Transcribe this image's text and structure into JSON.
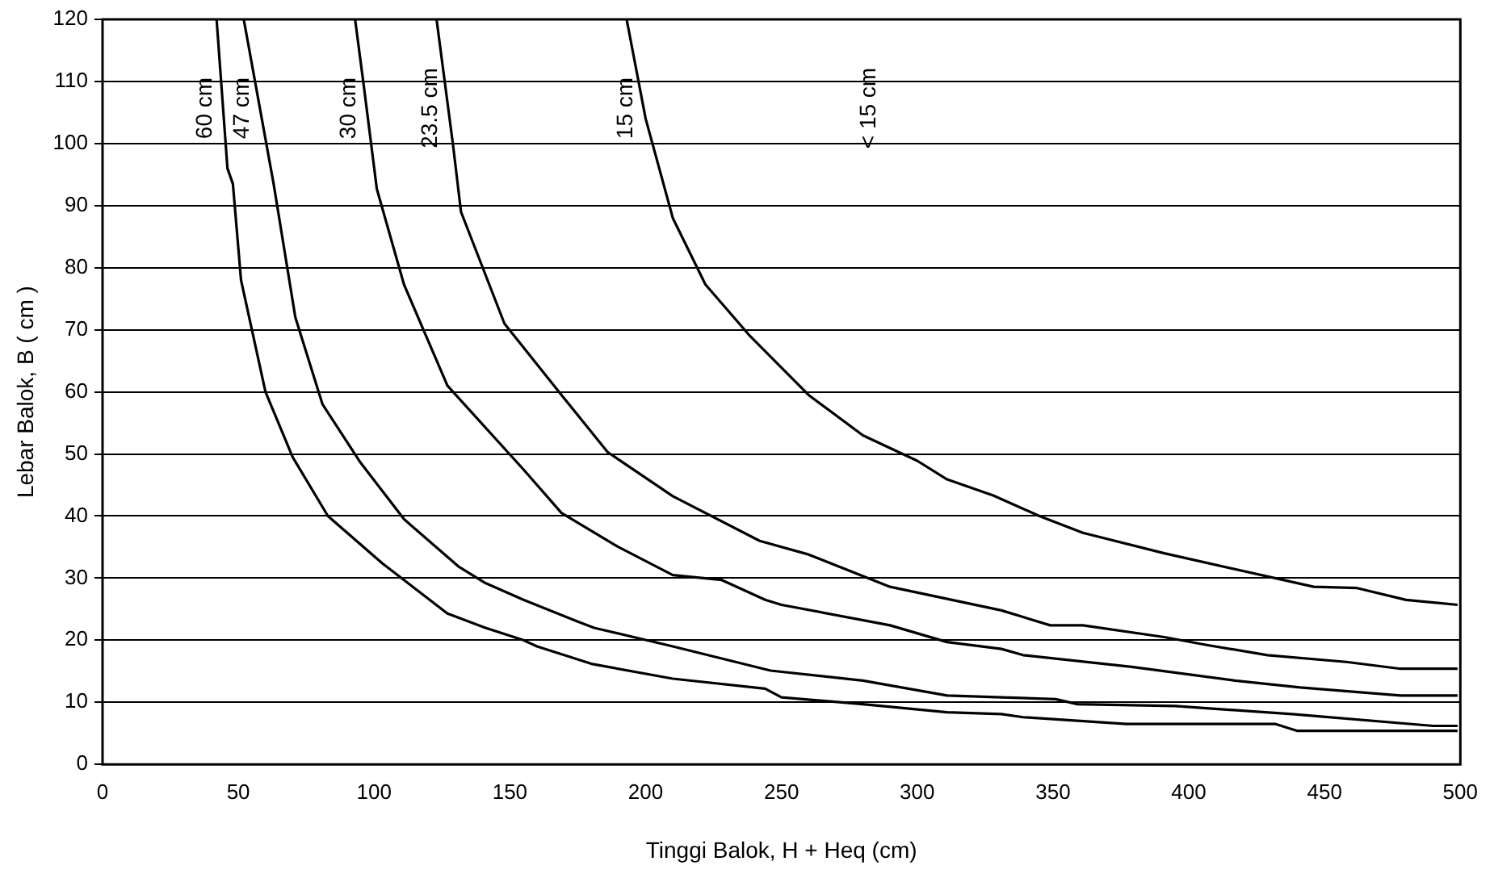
{
  "chart_data": {
    "type": "line",
    "xlabel": "Tinggi Balok, H + Heq (cm)",
    "ylabel": "Lebar Balok, B ( cm )",
    "xlim": [
      0,
      500
    ],
    "xticks": [
      0,
      50,
      100,
      150,
      200,
      250,
      300,
      350,
      400,
      450,
      500
    ],
    "ylim": [
      0,
      120
    ],
    "yticks": [
      0,
      10,
      20,
      30,
      40,
      50,
      60,
      70,
      80,
      90,
      100,
      110,
      120
    ],
    "grid": "y",
    "legend": false,
    "marker": "none",
    "line_style": "solid",
    "series": [
      {
        "name": "60 cm",
        "color": "#000000",
        "x": [
          42,
          46,
          48,
          51,
          60,
          70,
          83,
          103,
          127,
          141,
          155,
          160,
          180,
          210,
          244,
          250,
          280,
          311,
          331,
          339,
          377,
          432,
          440,
          499
        ],
        "values": [
          120,
          96,
          93.5,
          78,
          60,
          49.5,
          40,
          32.4,
          24.3,
          22,
          20,
          19,
          16.2,
          13.8,
          12.2,
          10.8,
          9.7,
          8.4,
          8.1,
          7.6,
          6.5,
          6.5,
          5.4,
          5.4
        ]
      },
      {
        "name": "47 cm",
        "color": "#000000",
        "x": [
          52,
          63,
          71,
          81,
          95,
          111,
          131,
          141,
          155,
          175,
          181,
          210,
          246,
          280,
          311,
          331,
          351,
          359,
          395,
          438,
          490,
          499
        ],
        "values": [
          120,
          93.5,
          72,
          58,
          48.6,
          39.5,
          31.9,
          29.2,
          26.5,
          23,
          22,
          19,
          15.1,
          13.5,
          11.1,
          10.8,
          10.5,
          9.7,
          9.4,
          8.1,
          6.2,
          6.2
        ]
      },
      {
        "name": "30 cm",
        "color": "#000000",
        "x": [
          93,
          96,
          101,
          111,
          127,
          155,
          169,
          190,
          210,
          228,
          244,
          250,
          290,
          311,
          331,
          339,
          379,
          417,
          441,
          478,
          499
        ],
        "values": [
          120,
          110,
          92.7,
          77.3,
          61,
          47.5,
          40.5,
          35,
          30.5,
          29.7,
          26.5,
          25.7,
          22.4,
          19.7,
          18.6,
          17.6,
          15.7,
          13.5,
          12.4,
          11.1,
          11.1
        ]
      },
      {
        "name": "23.5 cm",
        "color": "#000000",
        "x": [
          123,
          129,
          132,
          148,
          169,
          186,
          210,
          242,
          260,
          290,
          331,
          349,
          361,
          391,
          407,
          429,
          458,
          478,
          499
        ],
        "values": [
          120,
          100,
          89,
          71,
          59.5,
          50.3,
          43.2,
          36,
          33.8,
          28.6,
          24.8,
          22.4,
          22.4,
          20.5,
          19.2,
          17.6,
          16.5,
          15.4,
          15.4
        ]
      },
      {
        "name": "15 cm",
        "color": "#000000",
        "x": [
          193,
          200,
          210,
          222,
          238,
          260,
          280,
          300,
          311,
          328,
          345,
          361,
          391,
          446,
          462,
          480,
          499
        ],
        "values": [
          120,
          104,
          88,
          77.3,
          69.2,
          59.5,
          53,
          48.9,
          45.9,
          43.3,
          40,
          37.3,
          34,
          28.6,
          28.4,
          26.5,
          25.7
        ]
      }
    ],
    "annotations": [
      "< 15 cm"
    ]
  }
}
